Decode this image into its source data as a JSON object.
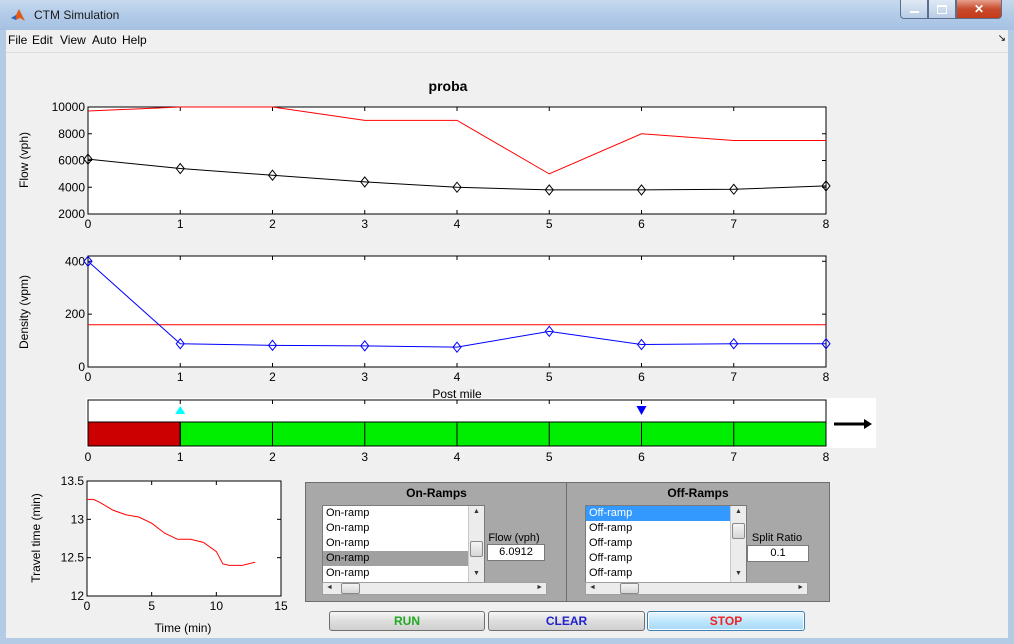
{
  "window": {
    "title": "CTM Simulation"
  },
  "menu": {
    "items": [
      "File",
      "Edit",
      "View",
      "Auto",
      "Help"
    ]
  },
  "colors": {
    "capacity": "#ff0000",
    "flow": "#000000",
    "density": "#0000ff",
    "congested": "#cc0000",
    "free": "#00ee00",
    "onramp_marker": "#00ffff",
    "offramp_marker": "#0000ff"
  },
  "chart_data": [
    {
      "type": "line",
      "title": "proba",
      "xlabel": "",
      "ylabel": "Flow (vph)",
      "xlim": [
        0,
        8
      ],
      "ylim": [
        2000,
        10000
      ],
      "xticks": [
        0,
        1,
        2,
        3,
        4,
        5,
        6,
        7,
        8
      ],
      "yticks": [
        2000,
        4000,
        6000,
        8000,
        10000
      ],
      "series": [
        {
          "color": "#ff0000",
          "marker": "none",
          "x": [
            0,
            1,
            2,
            3,
            4,
            5,
            6,
            7,
            8
          ],
          "values": [
            9700,
            10000,
            10000,
            9000,
            9000,
            5000,
            8000,
            7500,
            7500
          ]
        },
        {
          "color": "#000000",
          "marker": "diamond",
          "x": [
            0,
            1,
            2,
            3,
            4,
            5,
            6,
            7,
            8
          ],
          "values": [
            6100,
            5400,
            4900,
            4400,
            4000,
            3800,
            3800,
            3850,
            4100
          ]
        }
      ]
    },
    {
      "type": "line",
      "xlabel": "Post mile",
      "ylabel": "Density (vpm)",
      "xlim": [
        0,
        8
      ],
      "ylim": [
        0,
        420
      ],
      "xticks": [
        0,
        1,
        2,
        3,
        4,
        5,
        6,
        7,
        8
      ],
      "yticks": [
        0,
        200,
        400
      ],
      "series": [
        {
          "color": "#ff0000",
          "marker": "none",
          "x": [
            0,
            8
          ],
          "values": [
            160,
            160
          ]
        },
        {
          "color": "#0000ff",
          "marker": "diamond",
          "x": [
            0,
            1,
            2,
            3,
            4,
            5,
            6,
            7,
            8
          ],
          "values": [
            400,
            88,
            82,
            80,
            75,
            135,
            85,
            88,
            88
          ]
        }
      ]
    },
    {
      "type": "bar",
      "xlim": [
        0,
        8
      ],
      "xticks": [
        0,
        1,
        2,
        3,
        4,
        5,
        6,
        7,
        8
      ],
      "cells": [
        {
          "x0": 0,
          "x1": 1,
          "state": "congested"
        },
        {
          "x0": 1,
          "x1": 8,
          "state": "free"
        }
      ],
      "onramp_markers": [
        1
      ],
      "offramp_markers": [
        6
      ],
      "direction": "arrow-right"
    },
    {
      "type": "line",
      "xlabel": "Time (min)",
      "ylabel": "Travel time (min)",
      "xlim": [
        0,
        15
      ],
      "ylim": [
        12,
        13.5
      ],
      "xticks": [
        0,
        5,
        10,
        15
      ],
      "yticks": [
        12,
        12.5,
        13,
        13.5
      ],
      "series": [
        {
          "color": "#ff0000",
          "marker": "none",
          "x": [
            0,
            0.5,
            1,
            2,
            3,
            4,
            5,
            6,
            7,
            8,
            9,
            10,
            10.5,
            11,
            12,
            13
          ],
          "values": [
            13.26,
            13.26,
            13.22,
            13.12,
            13.06,
            13.03,
            12.95,
            12.82,
            12.74,
            12.74,
            12.7,
            12.58,
            12.42,
            12.4,
            12.4,
            12.44
          ]
        }
      ]
    }
  ],
  "on_ramps": {
    "title": "On-Ramps",
    "items": [
      "On-ramp",
      "On-ramp",
      "On-ramp",
      "On-ramp",
      "On-ramp"
    ],
    "selected_index": 3,
    "flow_label": "Flow (vph)",
    "flow_value": "6.0912"
  },
  "off_ramps": {
    "title": "Off-Ramps",
    "items": [
      "Off-ramp",
      "Off-ramp",
      "Off-ramp",
      "Off-ramp",
      "Off-ramp"
    ],
    "selected_index": 0,
    "split_label": "Split Ratio",
    "split_value": "0.1"
  },
  "buttons": {
    "run": {
      "label": "RUN",
      "color": "#22aa22"
    },
    "clear": {
      "label": "CLEAR",
      "color": "#2222cc"
    },
    "stop": {
      "label": "STOP",
      "color": "#ee2222"
    }
  }
}
